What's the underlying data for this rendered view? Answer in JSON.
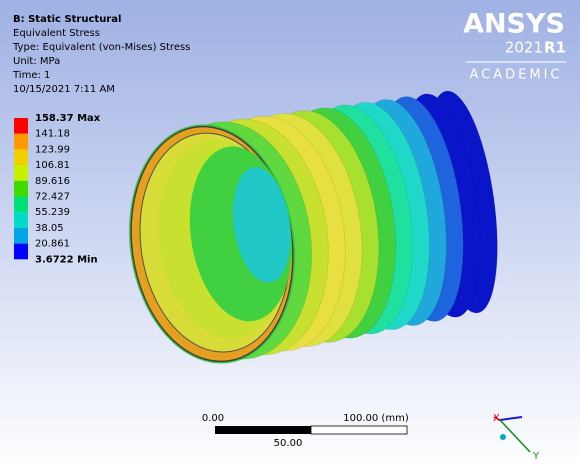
{
  "header": {
    "title": "B: Static Structural",
    "lines": [
      "Equivalent Stress",
      "Type: Equivalent (von-Mises) Stress",
      "Unit: MPa",
      "Time: 1",
      "10/15/2021 7:11 AM"
    ]
  },
  "legend": {
    "labels": [
      "158.37 Max",
      "141.18",
      "123.99",
      "106.81",
      "89.616",
      "72.427",
      "55.239",
      "38.05",
      "20.861",
      "3.6722 Min"
    ],
    "colors": [
      "#ff0000",
      "#ff9a00",
      "#f0d000",
      "#c8f000",
      "#40dc00",
      "#00e078",
      "#00dcc8",
      "#00a6e6",
      "#0000ff"
    ]
  },
  "logo": {
    "name": "ANSYS",
    "version": "2021",
    "release": "R1",
    "edition": "ACADEMIC"
  },
  "scale_bar": {
    "start": "0.00",
    "end": "100.00 (mm)",
    "middle": "50.00"
  },
  "triad": {
    "x": "X",
    "y": "Y"
  }
}
